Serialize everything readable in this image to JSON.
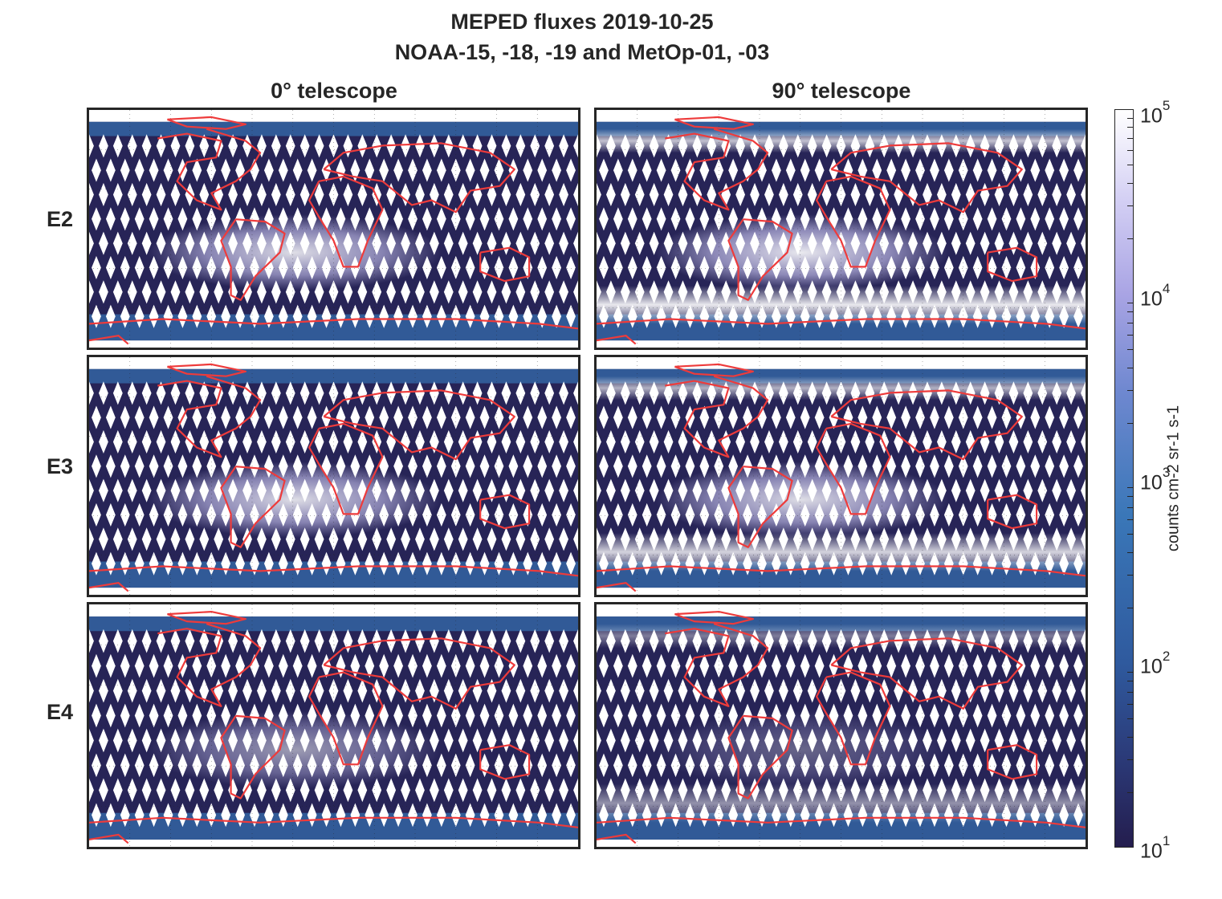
{
  "chart_data": {
    "type": "heatmap",
    "title": "MEPED fluxes 2019-10-25",
    "subtitle": "NOAA-15, -18, -19 and MetOp-01, -03",
    "columns": [
      "0° telescope",
      "90° telescope"
    ],
    "rows": [
      "E2",
      "E3",
      "E4"
    ],
    "colorbar": {
      "label": "counts cm-2 sr-1 s-1",
      "scale": "log",
      "range": [
        10,
        100000
      ],
      "ticks": [
        {
          "base": "10",
          "exp": "1",
          "value": 10
        },
        {
          "base": "10",
          "exp": "2",
          "value": 100
        },
        {
          "base": "10",
          "exp": "3",
          "value": 1000
        },
        {
          "base": "10",
          "exp": "4",
          "value": 10000
        },
        {
          "base": "10",
          "exp": "5",
          "value": 100000
        }
      ],
      "colors": [
        "#241d4e",
        "#2f5a9e",
        "#3a77b8",
        "#a9a4e4",
        "#ffffff"
      ]
    },
    "coastline_color": "#ee3b3b",
    "panels": [
      {
        "row": "E2",
        "column": "0° telescope",
        "saa_intensity": 0.85,
        "polar_intensity": 0.15
      },
      {
        "row": "E2",
        "column": "90° telescope",
        "saa_intensity": 0.9,
        "polar_intensity": 0.9
      },
      {
        "row": "E3",
        "column": "0° telescope",
        "saa_intensity": 0.85,
        "polar_intensity": 0.15
      },
      {
        "row": "E3",
        "column": "90° telescope",
        "saa_intensity": 0.85,
        "polar_intensity": 0.8
      },
      {
        "row": "E4",
        "column": "0° telescope",
        "saa_intensity": 0.55,
        "polar_intensity": 0.05
      },
      {
        "row": "E4",
        "column": "90° telescope",
        "saa_intensity": 0.3,
        "polar_intensity": 0.5
      }
    ]
  }
}
